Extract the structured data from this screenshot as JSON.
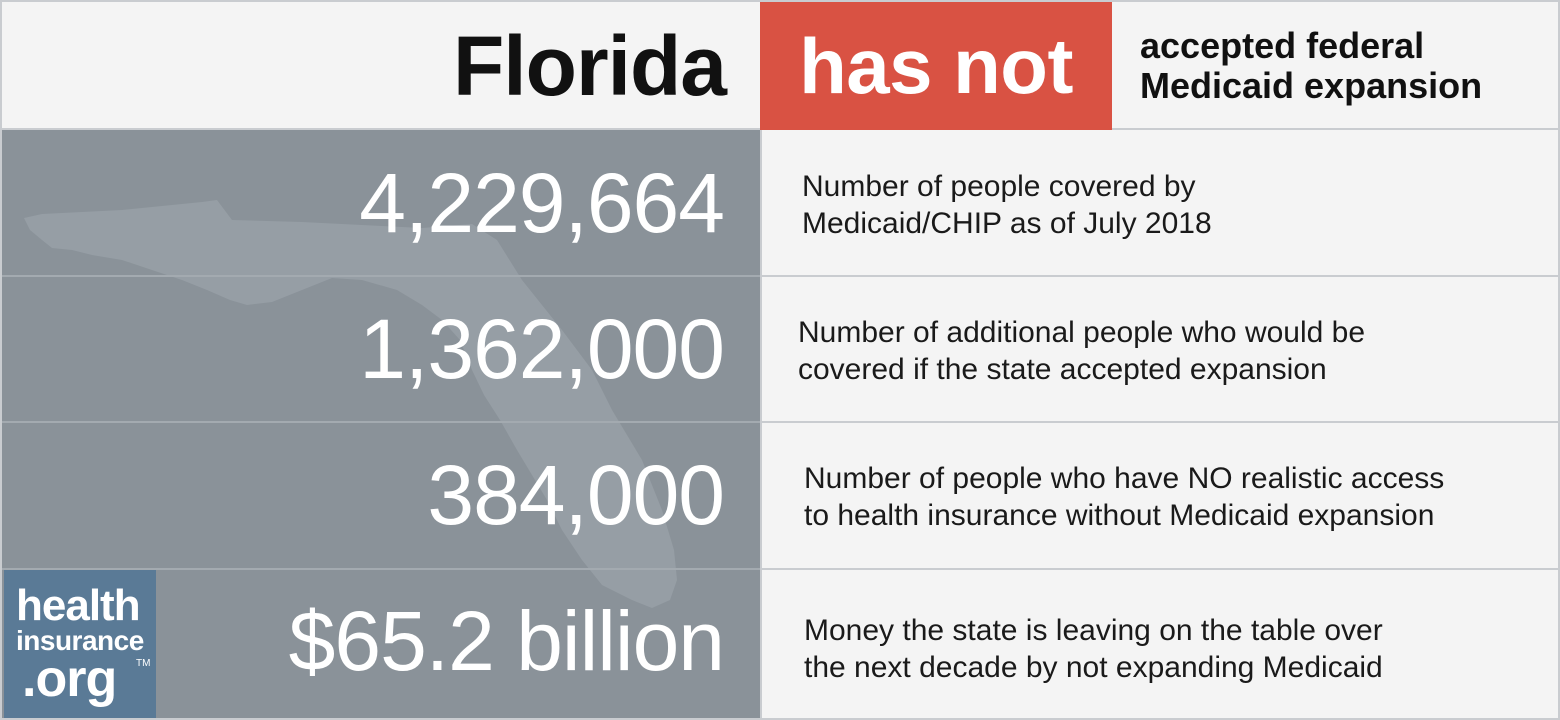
{
  "header": {
    "state": "Florida",
    "status": "has not",
    "status_text_line1": "accepted federal",
    "status_text_line2": "Medicaid expansion"
  },
  "stats": [
    {
      "value": "4,229,664",
      "desc_line1": "Number of people covered by",
      "desc_line2": "Medicaid/CHIP as of July 2018"
    },
    {
      "value": "1,362,000",
      "desc_line1": "Number of additional people who would be",
      "desc_line2": "covered if the state accepted expansion"
    },
    {
      "value": "384,000",
      "desc_line1": "Number of people who have NO realistic access",
      "desc_line2": "to health insurance without Medicaid expansion"
    },
    {
      "value": "$65.2 billion",
      "desc_line1": "Money the state is leaving on the table over",
      "desc_line2": "the next decade by not expanding Medicaid"
    }
  ],
  "logo": {
    "line1": "health",
    "line2": "insurance",
    "line3": ".org",
    "tm": "TM"
  },
  "colors": {
    "accent_red": "#d95243",
    "panel_gray": "#8a9299",
    "logo_blue": "#5a7a96",
    "background": "#f4f4f4"
  },
  "icons": {
    "map": "florida-state-map-silhouette"
  }
}
